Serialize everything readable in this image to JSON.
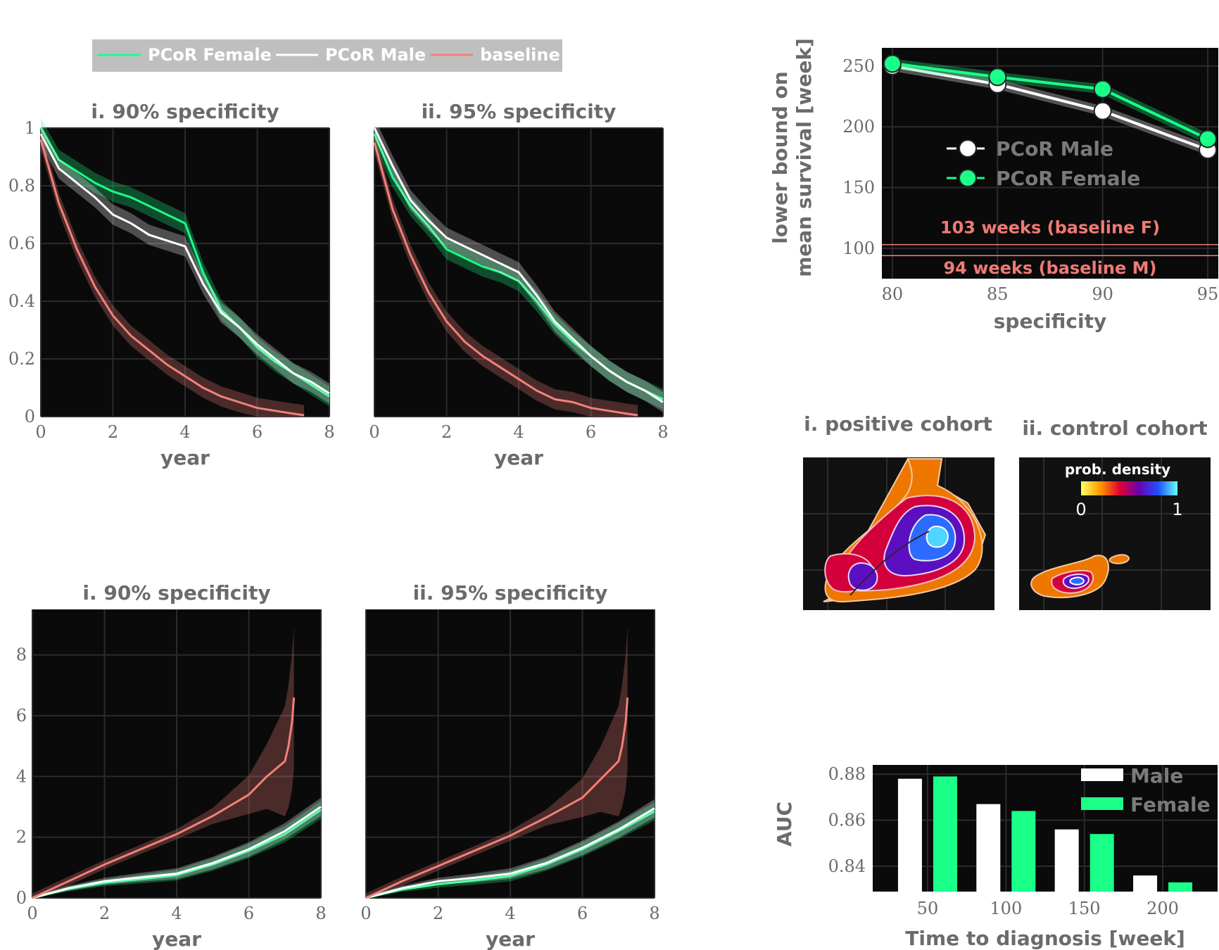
{
  "colors": {
    "female": "#1aff88",
    "male": "#ffffff",
    "baseline": "#f2807a",
    "panel_bg": "#0a0a0a",
    "text": "#6b6b6b"
  },
  "legend_top": {
    "female": "PCoR Female",
    "male": "PCoR Male",
    "baseline": "baseline"
  },
  "chart_data": [
    {
      "id": "survival_90",
      "type": "line",
      "title": "i. 90% specificity",
      "xlabel": "year",
      "ylabel": "",
      "xlim": [
        0,
        8
      ],
      "ylim": [
        0,
        1
      ],
      "xticks": [
        "0",
        "2",
        "4",
        "6",
        "8"
      ],
      "yticks": [
        "0",
        "0.2",
        "0.4",
        "0.6",
        "0.8",
        "1"
      ],
      "series": [
        {
          "name": "PCoR Female",
          "x": [
            0,
            0.5,
            1,
            1.5,
            2,
            2.5,
            3,
            3.5,
            4,
            4.5,
            5,
            5.5,
            6,
            6.5,
            7,
            7.5,
            8
          ],
          "y": [
            1.0,
            0.89,
            0.85,
            0.81,
            0.78,
            0.76,
            0.73,
            0.7,
            0.67,
            0.5,
            0.37,
            0.31,
            0.24,
            0.19,
            0.15,
            0.11,
            0.07
          ]
        },
        {
          "name": "PCoR Male",
          "x": [
            0,
            0.5,
            1,
            1.5,
            2,
            2.5,
            3,
            3.5,
            4,
            4.5,
            5,
            5.5,
            6,
            6.5,
            7,
            7.5,
            8
          ],
          "y": [
            0.98,
            0.86,
            0.81,
            0.76,
            0.7,
            0.67,
            0.63,
            0.61,
            0.59,
            0.46,
            0.36,
            0.31,
            0.25,
            0.2,
            0.15,
            0.12,
            0.08
          ]
        },
        {
          "name": "baseline",
          "x": [
            0,
            0.5,
            1,
            1.5,
            2,
            2.5,
            3,
            3.5,
            4,
            4.5,
            5,
            5.5,
            6,
            6.5,
            7,
            7.3
          ],
          "y": [
            0.96,
            0.74,
            0.58,
            0.45,
            0.35,
            0.28,
            0.23,
            0.18,
            0.14,
            0.1,
            0.07,
            0.05,
            0.03,
            0.02,
            0.01,
            0.005
          ]
        }
      ]
    },
    {
      "id": "survival_95",
      "type": "line",
      "title": "ii. 95% specificity",
      "xlabel": "year",
      "ylabel": "",
      "xlim": [
        0,
        8
      ],
      "ylim": [
        0,
        1
      ],
      "xticks": [
        "0",
        "2",
        "4",
        "6",
        "8"
      ],
      "yticks": [],
      "series": [
        {
          "name": "PCoR Female",
          "x": [
            0,
            0.5,
            1,
            1.5,
            2,
            2.5,
            3,
            3.5,
            4,
            4.5,
            5,
            5.5,
            6,
            6.5,
            7,
            7.5,
            8
          ],
          "y": [
            0.98,
            0.83,
            0.73,
            0.66,
            0.58,
            0.55,
            0.52,
            0.5,
            0.47,
            0.4,
            0.32,
            0.26,
            0.21,
            0.16,
            0.12,
            0.09,
            0.06
          ]
        },
        {
          "name": "PCoR Male",
          "x": [
            0,
            0.5,
            1,
            1.5,
            2,
            2.5,
            3,
            3.5,
            4,
            4.5,
            5,
            5.5,
            6,
            6.5,
            7,
            7.5,
            8
          ],
          "y": [
            1.0,
            0.87,
            0.75,
            0.68,
            0.62,
            0.59,
            0.56,
            0.53,
            0.5,
            0.42,
            0.33,
            0.27,
            0.21,
            0.16,
            0.12,
            0.09,
            0.05
          ]
        },
        {
          "name": "baseline",
          "x": [
            0,
            0.5,
            1,
            1.5,
            2,
            2.5,
            3,
            3.5,
            4,
            4.5,
            5,
            5.5,
            6,
            6.5,
            7,
            7.3
          ],
          "y": [
            0.95,
            0.72,
            0.56,
            0.43,
            0.33,
            0.26,
            0.21,
            0.17,
            0.13,
            0.09,
            0.06,
            0.05,
            0.03,
            0.02,
            0.01,
            0.005
          ]
        }
      ]
    },
    {
      "id": "hazard_90",
      "type": "line",
      "title": "i. 90% specificity",
      "xlabel": "year",
      "ylabel": "",
      "xlim": [
        0,
        8
      ],
      "ylim": [
        0,
        9.5
      ],
      "xticks": [
        "0",
        "2",
        "4",
        "6",
        "8"
      ],
      "yticks": [
        "0",
        "2",
        "4",
        "6",
        "8"
      ],
      "series": [
        {
          "name": "PCoR Female",
          "x": [
            0,
            1,
            2,
            3,
            4,
            5,
            6,
            7,
            8
          ],
          "y": [
            0,
            0.3,
            0.5,
            0.62,
            0.75,
            1.1,
            1.55,
            2.1,
            2.9
          ]
        },
        {
          "name": "PCoR Male",
          "x": [
            0,
            1,
            2,
            3,
            4,
            5,
            6,
            7,
            8
          ],
          "y": [
            0,
            0.32,
            0.55,
            0.68,
            0.8,
            1.15,
            1.6,
            2.2,
            3.0
          ]
        },
        {
          "name": "baseline",
          "x": [
            0,
            1,
            2,
            3,
            4,
            5,
            6,
            6.5,
            7,
            7.1,
            7.2,
            7.25
          ],
          "y": [
            0,
            0.55,
            1.1,
            1.6,
            2.1,
            2.7,
            3.4,
            4.0,
            4.5,
            5.0,
            5.8,
            6.6
          ]
        }
      ]
    },
    {
      "id": "hazard_95",
      "type": "line",
      "title": "ii. 95% specificity",
      "xlabel": "year",
      "ylabel": "",
      "xlim": [
        0,
        8
      ],
      "ylim": [
        0,
        9.5
      ],
      "xticks": [
        "0",
        "2",
        "4",
        "6",
        "8"
      ],
      "yticks": [],
      "series": [
        {
          "name": "PCoR Female",
          "x": [
            0,
            1,
            2,
            3,
            4,
            5,
            6,
            7,
            8
          ],
          "y": [
            0,
            0.28,
            0.45,
            0.58,
            0.72,
            1.1,
            1.6,
            2.2,
            2.85
          ]
        },
        {
          "name": "PCoR Male",
          "x": [
            0,
            1,
            2,
            3,
            4,
            5,
            6,
            7,
            8
          ],
          "y": [
            0,
            0.32,
            0.55,
            0.66,
            0.8,
            1.15,
            1.65,
            2.25,
            2.95
          ]
        },
        {
          "name": "baseline",
          "x": [
            0,
            1,
            2,
            3,
            4,
            5,
            6,
            6.5,
            7,
            7.1,
            7.2,
            7.25
          ],
          "y": [
            0,
            0.55,
            1.05,
            1.55,
            2.05,
            2.65,
            3.3,
            3.9,
            4.5,
            5.0,
            5.8,
            6.6
          ]
        }
      ]
    },
    {
      "id": "mean_survival",
      "type": "line",
      "title": "",
      "xlabel": "specificity",
      "ylabel": "lower bound on mean survival [week]",
      "ylabel_lines": [
        "lower bound on",
        "mean survival [week]"
      ],
      "xlim": [
        79.5,
        95.5
      ],
      "ylim": [
        75,
        265
      ],
      "xticks": [
        "80",
        "85",
        "90",
        "95"
      ],
      "yticks": [
        "100",
        "150",
        "200",
        "250"
      ],
      "series": [
        {
          "name": "PCoR Male",
          "x": [
            80,
            85,
            90,
            95
          ],
          "y": [
            250,
            235,
            213,
            181
          ]
        },
        {
          "name": "PCoR Female",
          "x": [
            80,
            85,
            90,
            95
          ],
          "y": [
            252,
            241,
            231,
            190
          ]
        }
      ],
      "hlines": [
        {
          "label": "103 weeks (baseline F)",
          "y": 103
        },
        {
          "label": "94 weeks (baseline M)",
          "y": 94
        }
      ]
    },
    {
      "id": "auc_bars",
      "type": "bar",
      "title": "",
      "xlabel": "Time to diagnosis [week]",
      "ylabel": "AUC",
      "categories": [
        "50",
        "100",
        "150",
        "200"
      ],
      "ylim": [
        0.829,
        0.884
      ],
      "yticks": [
        "0.84",
        "0.86",
        "0.88"
      ],
      "series": [
        {
          "name": "Male",
          "values": [
            0.878,
            0.867,
            0.856,
            0.836
          ]
        },
        {
          "name": "Female",
          "values": [
            0.879,
            0.864,
            0.854,
            0.833
          ]
        }
      ]
    },
    {
      "id": "density_maps",
      "type": "heatmap",
      "panels": [
        {
          "title": "i. positive cohort"
        },
        {
          "title": "ii. control cohort"
        }
      ],
      "colorbar": {
        "label": "prob. density",
        "min": "0",
        "max": "1"
      }
    }
  ]
}
